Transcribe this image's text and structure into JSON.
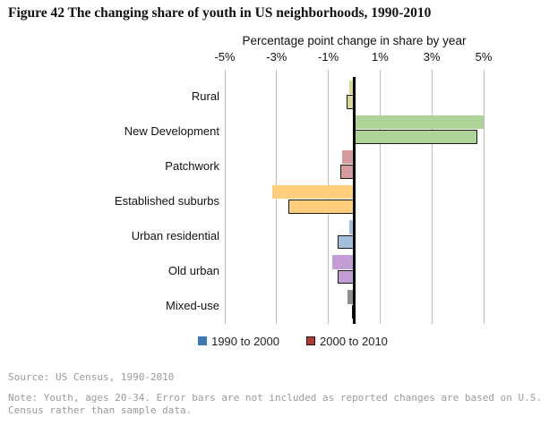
{
  "figure": {
    "title": "Figure 42 The changing share of youth in US neighborhoods, 1990-2010",
    "source": "Source: US Census, 1990-2010",
    "note": "Note: Youth, ages 20-34. Error bars are not included as reported changes are based on U.S. Census rather than sample data."
  },
  "chart_data": {
    "type": "bar",
    "orientation": "horizontal",
    "axis_title": "Percentage point change in share by year",
    "categories": [
      "Rural",
      "New Development",
      "Patchwork",
      "Established suburbs",
      "Urban residential",
      "Old urban",
      "Mixed-use"
    ],
    "series": [
      {
        "name": "1990 to 2000",
        "legend_color": "#3a79b5",
        "outlined": false,
        "values": [
          -0.2,
          5.0,
          -0.45,
          -3.15,
          -0.2,
          -0.85,
          -0.25
        ]
      },
      {
        "name": "2000 to 2010",
        "legend_color": "#b23a32",
        "outlined": true,
        "values": [
          -0.3,
          4.75,
          -0.55,
          -2.55,
          -0.65,
          -0.65,
          -0.1
        ]
      }
    ],
    "category_colors": [
      "#d8d89b",
      "#add398",
      "#d49c9c",
      "#ffcf7e",
      "#a2c0de",
      "#c29dd6",
      "#8f8f8f"
    ],
    "xticks": [
      {
        "value": -5,
        "label": "-5%"
      },
      {
        "value": -3,
        "label": "-3%"
      },
      {
        "value": -1,
        "label": "-1%"
      },
      {
        "value": 1,
        "label": "1%"
      },
      {
        "value": 3,
        "label": "3%"
      },
      {
        "value": 5,
        "label": "5%"
      }
    ],
    "xlim": [
      -5,
      5
    ],
    "grid": true,
    "legend_position": "bottom",
    "colors": {
      "gridline": "#bdbdbd",
      "zero_line": "#000000",
      "bar_outline": "#1a1a1a",
      "footer_text": "#9b9b9b"
    }
  }
}
